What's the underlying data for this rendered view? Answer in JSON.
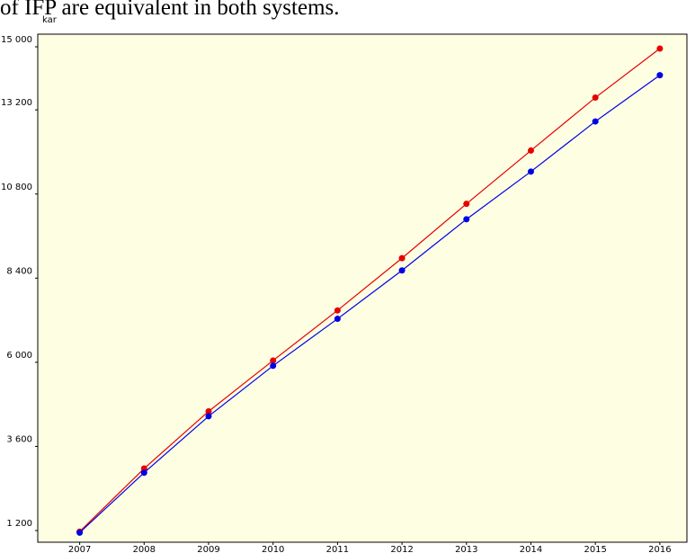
{
  "caption": "of IFP are equivalent in both systems.",
  "chart_data": {
    "type": "line",
    "y_label": "kar",
    "x": [
      2007,
      2008,
      2009,
      2010,
      2011,
      2012,
      2013,
      2014,
      2015,
      2016
    ],
    "xlim": [
      2006.35,
      2016.42
    ],
    "series": [
      {
        "color": "#e60000",
        "values": [
          1170,
          2970,
          4600,
          6050,
          7480,
          8970,
          10520,
          12040,
          13550,
          14950
        ]
      },
      {
        "color": "#0000e6",
        "values": [
          1140,
          2850,
          4460,
          5900,
          7240,
          8620,
          10080,
          11440,
          12870,
          14190
        ]
      }
    ],
    "ylim": [
      867,
      15360
    ],
    "yticks": [
      {
        "value": 1200,
        "label": "1 200"
      },
      {
        "value": 3600,
        "label": "3 600"
      },
      {
        "value": 6000,
        "label": "6 000"
      },
      {
        "value": 8400,
        "label": "8 400"
      },
      {
        "value": 10800,
        "label": "10 800"
      },
      {
        "value": 13200,
        "label": "13 200"
      },
      {
        "value": 15000,
        "label": "15 000"
      }
    ],
    "grid": false
  }
}
